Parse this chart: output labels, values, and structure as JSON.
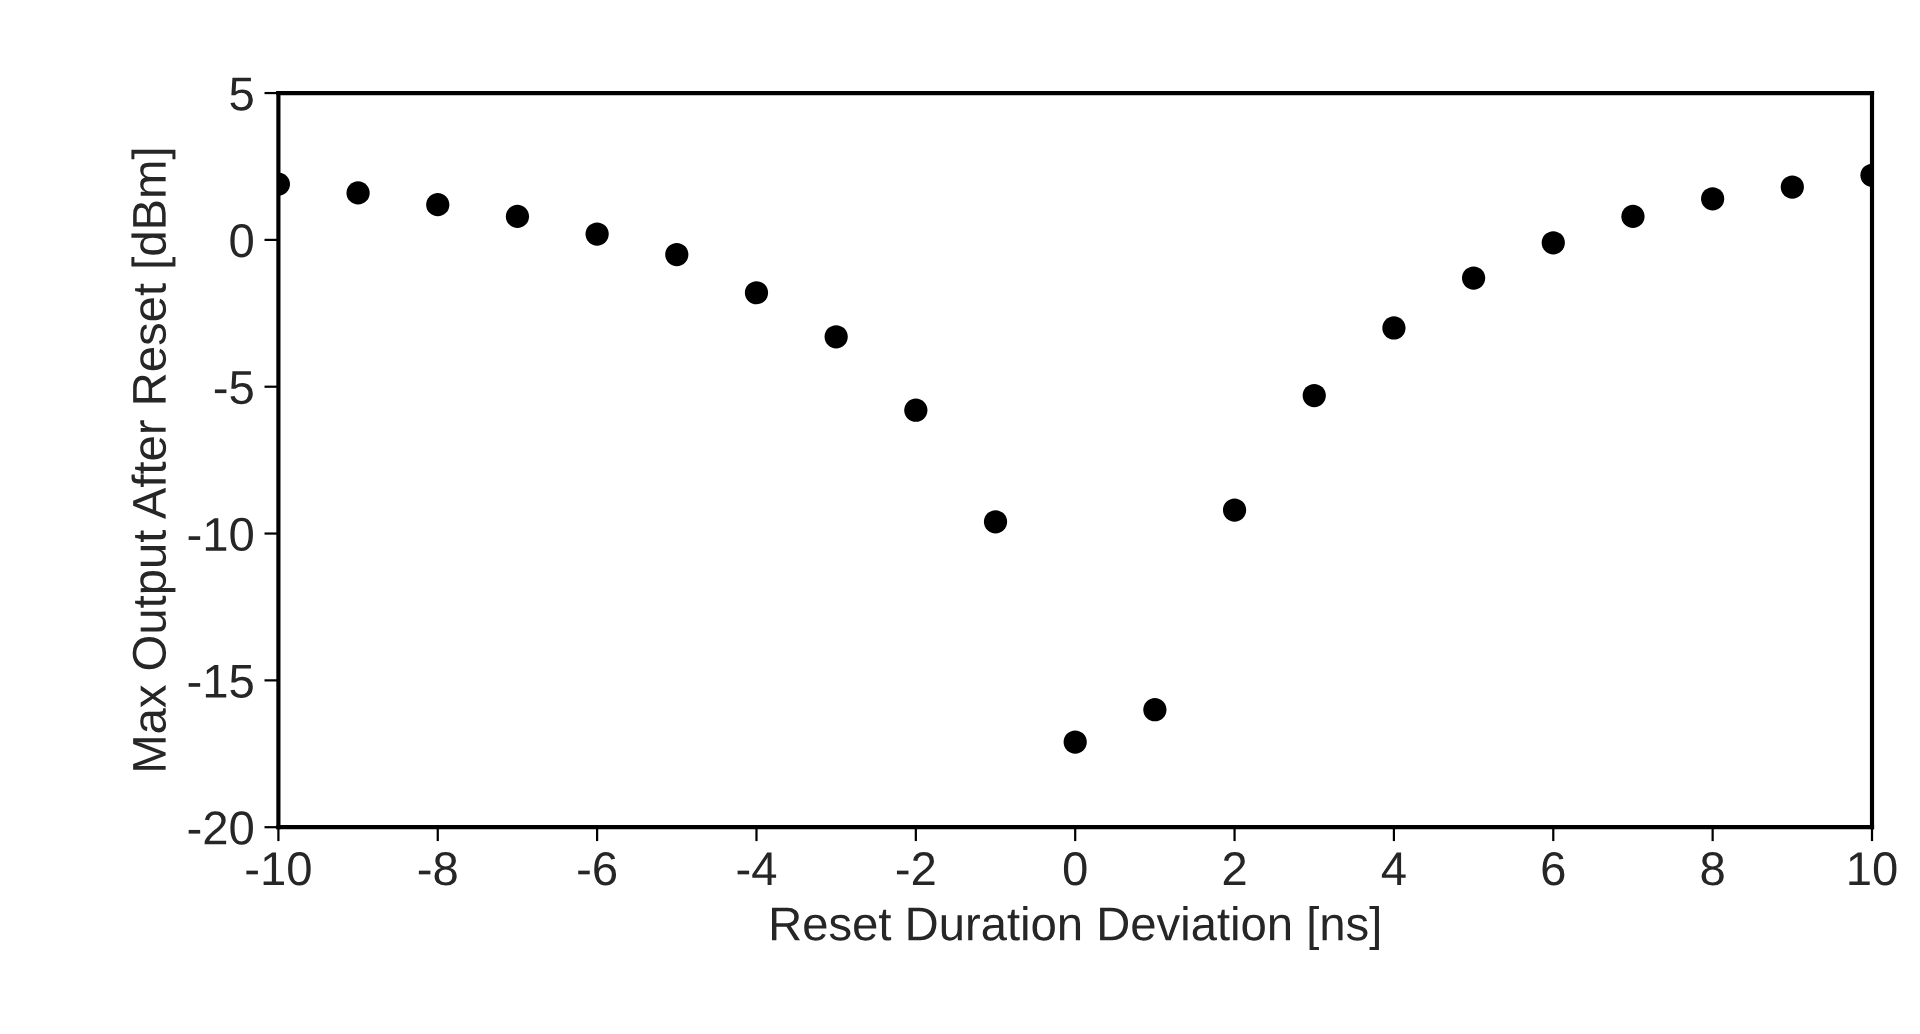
{
  "chart_data": {
    "type": "scatter",
    "xlabel": "Reset Duration Deviation [ns]",
    "ylabel": "Max Output After Reset [dBm]",
    "x": [
      -10,
      -9,
      -8,
      -7,
      -6,
      -5,
      -4,
      -3,
      -2,
      -1,
      0,
      1,
      2,
      3,
      4,
      5,
      6,
      7,
      8,
      9,
      10
    ],
    "series": [
      {
        "color": "#000000",
        "values": [
          1.9,
          1.6,
          1.2,
          0.8,
          0.2,
          -0.5,
          -1.8,
          -3.3,
          -5.8,
          -9.6,
          -17.1,
          -16.0,
          -9.2,
          -5.3,
          -3.0,
          -1.3,
          -0.1,
          0.8,
          1.4,
          1.8,
          2.2
        ]
      }
    ],
    "xlim": [
      -10,
      10
    ],
    "xticks": [
      -10,
      -8,
      -6,
      -4,
      -2,
      0,
      2,
      4,
      6,
      8,
      10
    ],
    "ylim": [
      -20,
      5
    ],
    "yticks": [
      -20,
      -15,
      -10,
      -5,
      0,
      5
    ],
    "grid": false,
    "legend": false,
    "marker": "circle"
  }
}
